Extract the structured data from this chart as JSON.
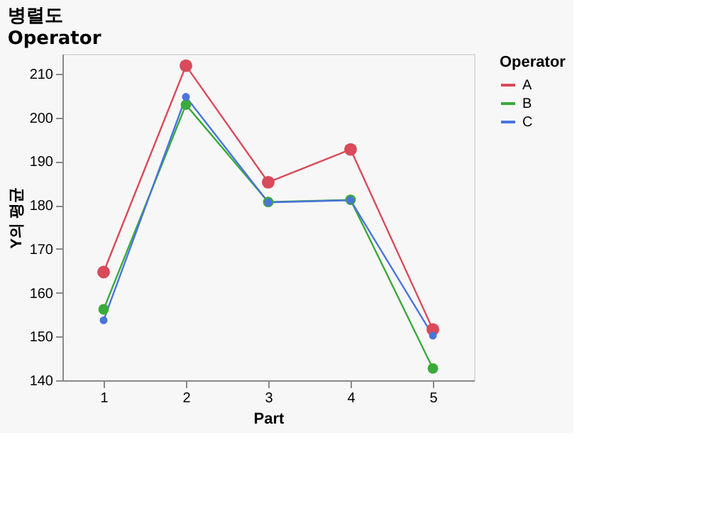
{
  "chart_data": {
    "type": "line",
    "title": "병렬도",
    "subtitle": "Operator",
    "xlabel": "Part",
    "ylabel": "Y의 평균",
    "legend_title": "Operator",
    "categories": [
      "1",
      "2",
      "3",
      "4",
      "5"
    ],
    "series": [
      {
        "name": "A",
        "color": "#d94a5a",
        "values": [
          164.7,
          211.8,
          185.2,
          192.7,
          151.6
        ]
      },
      {
        "name": "B",
        "color": "#3aaa3a",
        "values": [
          156.2,
          202.9,
          180.7,
          181.2,
          142.7
        ]
      },
      {
        "name": "C",
        "color": "#4a74dc",
        "values": [
          153.7,
          204.7,
          180.6,
          181.1,
          150.2
        ]
      }
    ],
    "ylim": [
      140,
      214.5
    ],
    "yticks": [
      140,
      150,
      160,
      170,
      180,
      190,
      200,
      210
    ],
    "grid": false,
    "legend": "right",
    "marker": "circle",
    "line_style": "solid"
  }
}
